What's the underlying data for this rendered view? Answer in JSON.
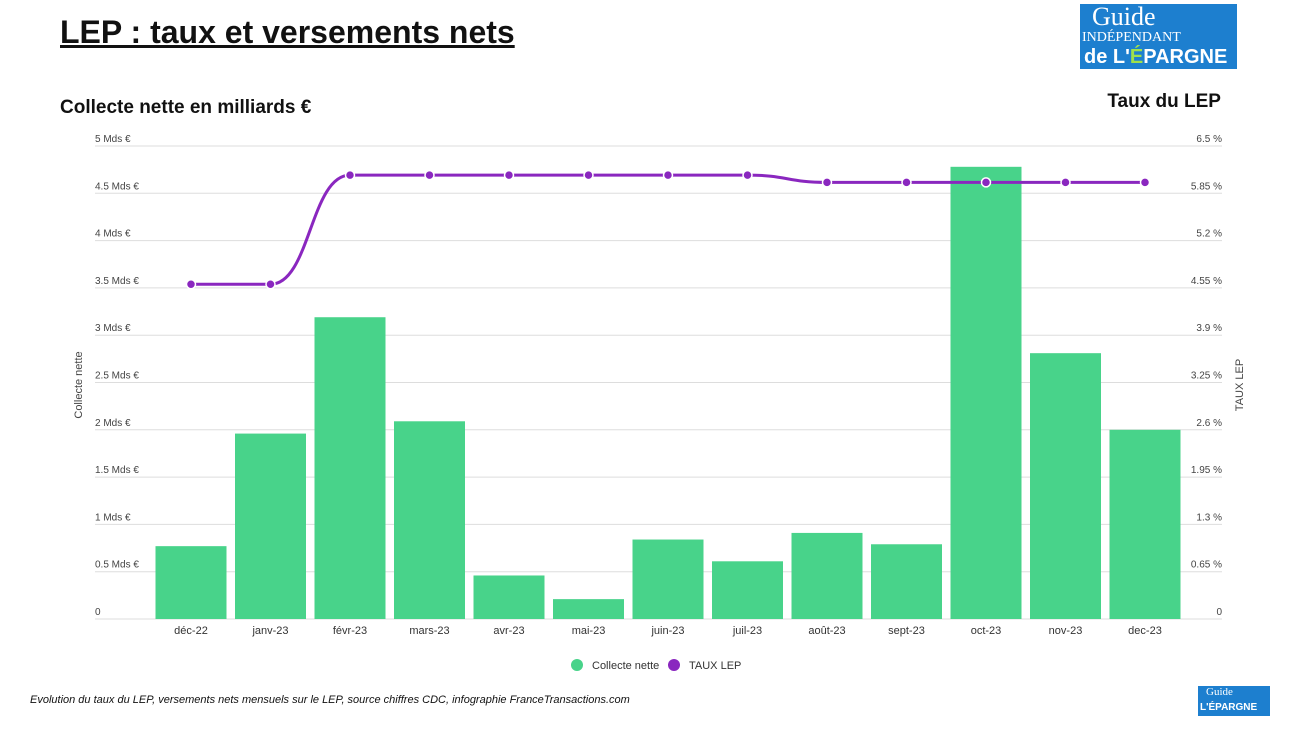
{
  "header": {
    "title": "LEP : taux et versements nets",
    "left_subtitle": "Collecte nette en milliards €",
    "right_subtitle": "Taux du LEP"
  },
  "logo": {
    "text": "le Guide INDÉPENDANT de L'ÉPARGNE",
    "site": "FranceTransactions.com"
  },
  "caption": "Evolution du taux du LEP, versements nets mensuels sur le LEP, source chiffres CDC, infographie FranceTransactions.com",
  "chart_data": {
    "type": "bar+line",
    "categories": [
      "déc-22",
      "janv-23",
      "févr-23",
      "mars-23",
      "avr-23",
      "mai-23",
      "juin-23",
      "juil-23",
      "août-23",
      "sept-23",
      "oct-23",
      "nov-23",
      "dec-23"
    ],
    "series": [
      {
        "name": "Collecte nette",
        "type": "bar",
        "axis": "left",
        "unit": "Mds €",
        "color": "#48d38a",
        "values": [
          0.77,
          1.96,
          3.19,
          2.09,
          0.46,
          0.21,
          0.84,
          0.61,
          0.91,
          0.79,
          4.78,
          2.81,
          2.0
        ]
      },
      {
        "name": "TAUX LEP",
        "type": "line",
        "axis": "right",
        "unit": "%",
        "color": "#8a27bf",
        "values": [
          4.6,
          4.6,
          6.1,
          6.1,
          6.1,
          6.1,
          6.1,
          6.1,
          6.0,
          6.0,
          6.0,
          6.0,
          6.0
        ]
      }
    ],
    "ylabel": "Collecte nette",
    "y2label": "TAUX LEP",
    "ylim": [
      0,
      5
    ],
    "y2lim": [
      0,
      6.5
    ],
    "yticks": [
      "0",
      "0.5 Mds €",
      "1 Mds €",
      "1.5 Mds €",
      "2 Mds €",
      "2.5 Mds €",
      "3 Mds €",
      "3.5 Mds €",
      "4 Mds €",
      "4.5 Mds €",
      "5 Mds €"
    ],
    "y2ticks": [
      "0",
      "0.65 %",
      "1.3 %",
      "1.95 %",
      "2.6 %",
      "3.25 %",
      "3.9 %",
      "4.55 %",
      "5.2 %",
      "5.85 %",
      "6.5 %"
    ],
    "grid": true,
    "legend": "bottom"
  }
}
